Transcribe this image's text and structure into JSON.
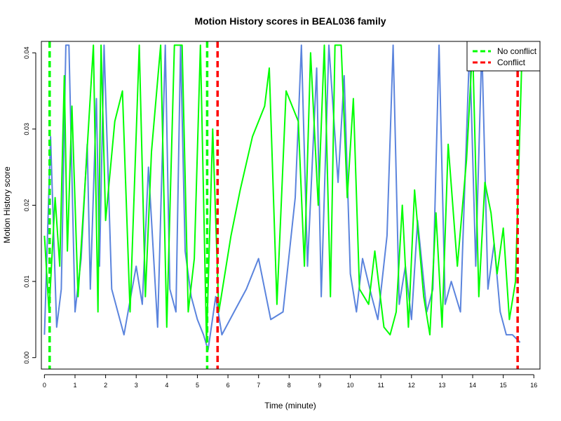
{
  "chart_data": {
    "type": "line",
    "title": "Motion History scores in BEAL036 family",
    "xlabel": "Time (minute)",
    "ylabel": "Motion History score",
    "xlim": [
      -0.1,
      16.2
    ],
    "ylim": [
      -0.0015,
      0.0415
    ],
    "x_ticks": [
      0,
      1,
      2,
      3,
      4,
      5,
      6,
      7,
      8,
      9,
      10,
      11,
      12,
      13,
      14,
      15,
      16
    ],
    "y_ticks": [
      0.0,
      0.01,
      0.02,
      0.03,
      0.04
    ],
    "y_tick_labels": [
      "0.00",
      "0.01",
      "0.02",
      "0.03",
      "0.04"
    ],
    "grid": false,
    "legend": {
      "position": "top-right",
      "entries": [
        {
          "label": "No conflict",
          "color": "#00ff00",
          "dash": true
        },
        {
          "label": "Conflict",
          "color": "#ff0000",
          "dash": true
        }
      ]
    },
    "series": [
      {
        "color": "#5b84dd",
        "x": [
          0.0,
          0.2,
          0.4,
          0.55,
          0.7,
          0.8,
          1.0,
          1.2,
          1.4,
          1.5,
          1.7,
          1.8,
          1.95,
          2.2,
          2.4,
          2.6,
          3.0,
          3.2,
          3.4,
          3.7,
          3.95,
          4.1,
          4.3,
          4.45,
          4.6,
          4.8,
          5.0,
          5.2,
          5.35,
          5.6,
          5.8,
          6.2,
          6.6,
          7.0,
          7.4,
          7.8,
          8.2,
          8.4,
          8.6,
          8.9,
          9.05,
          9.3,
          9.6,
          9.8,
          10.0,
          10.2,
          10.4,
          10.7,
          10.9,
          11.2,
          11.4,
          11.6,
          11.8,
          12.0,
          12.2,
          12.5,
          12.7,
          12.9,
          13.1,
          13.3,
          13.6,
          13.9,
          14.1,
          14.3,
          14.5,
          14.7,
          14.9,
          15.1,
          15.3,
          15.55
        ],
        "y": [
          0.003,
          0.029,
          0.004,
          0.009,
          0.041,
          0.041,
          0.006,
          0.013,
          0.028,
          0.009,
          0.034,
          0.012,
          0.041,
          0.009,
          0.006,
          0.003,
          0.012,
          0.007,
          0.025,
          0.004,
          0.041,
          0.009,
          0.006,
          0.041,
          0.014,
          0.008,
          0.005,
          0.003,
          0.001,
          0.008,
          0.003,
          0.006,
          0.009,
          0.013,
          0.005,
          0.006,
          0.021,
          0.041,
          0.012,
          0.038,
          0.008,
          0.041,
          0.023,
          0.037,
          0.011,
          0.006,
          0.013,
          0.008,
          0.005,
          0.016,
          0.041,
          0.007,
          0.012,
          0.005,
          0.018,
          0.006,
          0.009,
          0.041,
          0.007,
          0.01,
          0.006,
          0.041,
          0.012,
          0.041,
          0.009,
          0.015,
          0.006,
          0.003,
          0.003,
          0.002
        ]
      },
      {
        "color": "#00ff00",
        "x": [
          0.0,
          0.15,
          0.35,
          0.5,
          0.65,
          0.75,
          0.9,
          1.1,
          1.3,
          1.6,
          1.75,
          1.85,
          2.0,
          2.3,
          2.55,
          2.8,
          3.1,
          3.3,
          3.5,
          3.8,
          4.0,
          4.25,
          4.5,
          4.7,
          4.9,
          5.1,
          5.3,
          5.5,
          5.7,
          6.1,
          6.4,
          6.8,
          7.2,
          7.35,
          7.6,
          7.9,
          8.3,
          8.5,
          8.7,
          8.95,
          9.15,
          9.35,
          9.5,
          9.7,
          9.9,
          10.1,
          10.3,
          10.6,
          10.8,
          11.1,
          11.3,
          11.5,
          11.7,
          11.9,
          12.1,
          12.4,
          12.6,
          12.8,
          13.0,
          13.2,
          13.5,
          13.8,
          14.0,
          14.2,
          14.4,
          14.6,
          14.8,
          15.0,
          15.2,
          15.4,
          15.6
        ],
        "y": [
          0.016,
          0.006,
          0.021,
          0.012,
          0.037,
          0.014,
          0.033,
          0.008,
          0.021,
          0.041,
          0.006,
          0.041,
          0.018,
          0.031,
          0.035,
          0.006,
          0.041,
          0.008,
          0.027,
          0.041,
          0.004,
          0.041,
          0.041,
          0.006,
          0.013,
          0.041,
          0.002,
          0.03,
          0.006,
          0.016,
          0.022,
          0.029,
          0.033,
          0.038,
          0.007,
          0.035,
          0.031,
          0.012,
          0.04,
          0.02,
          0.041,
          0.008,
          0.041,
          0.041,
          0.021,
          0.034,
          0.009,
          0.007,
          0.014,
          0.004,
          0.003,
          0.006,
          0.02,
          0.004,
          0.022,
          0.008,
          0.003,
          0.019,
          0.004,
          0.028,
          0.012,
          0.026,
          0.041,
          0.008,
          0.023,
          0.019,
          0.011,
          0.017,
          0.005,
          0.01,
          0.038
        ]
      }
    ],
    "event_lines": [
      {
        "legend": "No conflict",
        "x": 0.17,
        "color": "#00ff00"
      },
      {
        "legend": "No conflict",
        "x": 5.32,
        "color": "#00ff00"
      },
      {
        "legend": "Conflict",
        "x": 5.66,
        "color": "#ff0000"
      },
      {
        "legend": "Conflict",
        "x": 15.47,
        "color": "#ff0000"
      }
    ]
  }
}
